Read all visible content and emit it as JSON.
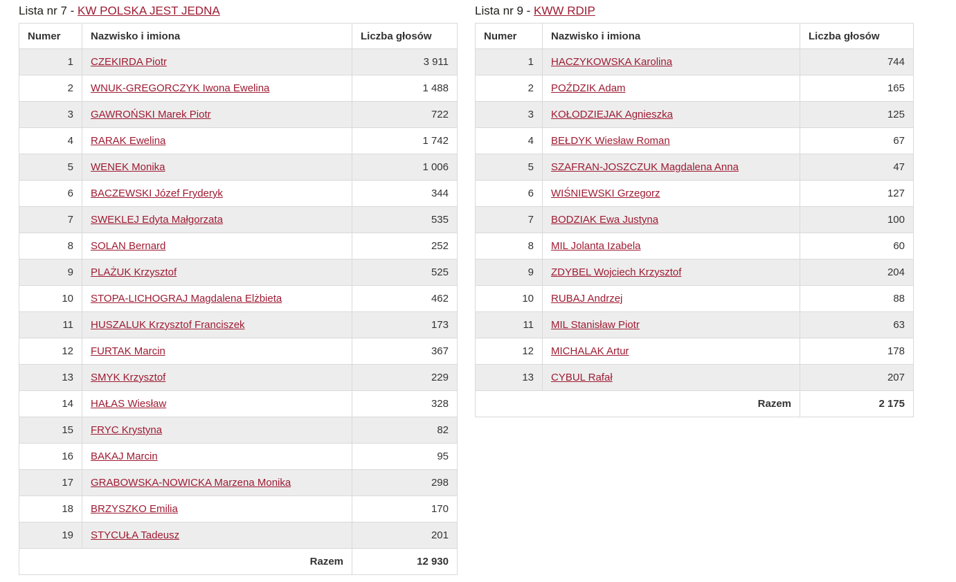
{
  "colors": {
    "accent": "#9e1b32",
    "stripe": "#ededed",
    "border": "#d9d9d9",
    "text": "#333333",
    "title_text": "#1d1d1b"
  },
  "tables": [
    {
      "title_prefix": "Lista nr 7 - ",
      "title_link": "KW POLSKA JEST JEDNA",
      "columns": [
        "Numer",
        "Nazwisko i imiona",
        "Liczba głosów"
      ],
      "rows": [
        {
          "num": "1",
          "name": "CZEKIRDA Piotr",
          "votes": "3 911"
        },
        {
          "num": "2",
          "name": "WNUK-GREGORCZYK Iwona Ewelina",
          "votes": "1 488"
        },
        {
          "num": "3",
          "name": "GAWROŃSKI Marek Piotr",
          "votes": "722"
        },
        {
          "num": "4",
          "name": "RARAK Ewelina",
          "votes": "1 742"
        },
        {
          "num": "5",
          "name": "WENEK Monika",
          "votes": "1 006"
        },
        {
          "num": "6",
          "name": "BACZEWSKI Józef Fryderyk",
          "votes": "344"
        },
        {
          "num": "7",
          "name": "SWEKLEJ Edyta Małgorzata",
          "votes": "535"
        },
        {
          "num": "8",
          "name": "SOLAN Bernard",
          "votes": "252"
        },
        {
          "num": "9",
          "name": "PLAŻUK Krzysztof",
          "votes": "525"
        },
        {
          "num": "10",
          "name": "STOPA-LICHOGRAJ Magdalena Elżbieta",
          "votes": "462"
        },
        {
          "num": "11",
          "name": "HUSZALUK Krzysztof Franciszek",
          "votes": "173"
        },
        {
          "num": "12",
          "name": "FURTAK Marcin",
          "votes": "367"
        },
        {
          "num": "13",
          "name": "SMYK Krzysztof",
          "votes": "229"
        },
        {
          "num": "14",
          "name": "HAŁAS Wiesław",
          "votes": "328"
        },
        {
          "num": "15",
          "name": "FRYC Krystyna",
          "votes": "82"
        },
        {
          "num": "16",
          "name": "BAKAJ Marcin",
          "votes": "95"
        },
        {
          "num": "17",
          "name": "GRABOWSKA-NOWICKA Marzena Monika",
          "votes": "298"
        },
        {
          "num": "18",
          "name": "BRZYSZKO Emilia",
          "votes": "170"
        },
        {
          "num": "19",
          "name": "STYCUŁA Tadeusz",
          "votes": "201"
        }
      ],
      "total_label": "Razem",
      "total_value": "12 930"
    },
    {
      "title_prefix": "Lista nr 9 - ",
      "title_link": "KWW RDIP",
      "columns": [
        "Numer",
        "Nazwisko i imiona",
        "Liczba głosów"
      ],
      "rows": [
        {
          "num": "1",
          "name": "HACZYKOWSKA Karolina",
          "votes": "744"
        },
        {
          "num": "2",
          "name": "POŹDZIK Adam",
          "votes": "165"
        },
        {
          "num": "3",
          "name": "KOŁODZIEJAK Agnieszka",
          "votes": "125"
        },
        {
          "num": "4",
          "name": "BEŁDYK Wiesław Roman",
          "votes": "67"
        },
        {
          "num": "5",
          "name": "SZAFRAN-JOSZCZUK Magdalena Anna",
          "votes": "47"
        },
        {
          "num": "6",
          "name": "WIŚNIEWSKI Grzegorz",
          "votes": "127"
        },
        {
          "num": "7",
          "name": "BODZIAK Ewa Justyna",
          "votes": "100"
        },
        {
          "num": "8",
          "name": "MIL Jolanta Izabela",
          "votes": "60"
        },
        {
          "num": "9",
          "name": "ZDYBEL Wojciech Krzysztof",
          "votes": "204"
        },
        {
          "num": "10",
          "name": "RUBAJ Andrzej",
          "votes": "88"
        },
        {
          "num": "11",
          "name": "MIL Stanisław Piotr",
          "votes": "63"
        },
        {
          "num": "12",
          "name": "MICHALAK Artur",
          "votes": "178"
        },
        {
          "num": "13",
          "name": "CYBUL Rafał",
          "votes": "207"
        }
      ],
      "total_label": "Razem",
      "total_value": "2 175"
    }
  ]
}
